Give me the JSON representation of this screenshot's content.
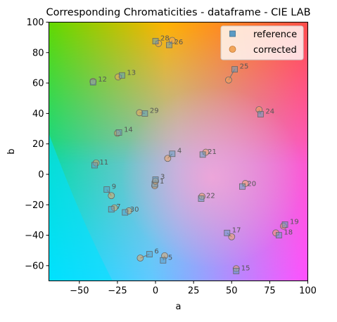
{
  "chart_data": {
    "type": "scatter",
    "title": "Corresponding Chromaticities - dataframe - CIE LAB",
    "xlabel": "a",
    "ylabel": "b",
    "xlim": [
      -70,
      100
    ],
    "ylim": [
      -70,
      100
    ],
    "xticks": [
      -50,
      -25,
      0,
      25,
      50,
      75,
      100
    ],
    "yticks": [
      -60,
      -40,
      -20,
      0,
      20,
      40,
      60,
      80,
      100
    ],
    "grid": false,
    "legend": "top-right",
    "series": [
      {
        "name": "reference",
        "marker": "square",
        "color": "#5b9bc4"
      },
      {
        "name": "corrected",
        "marker": "circle",
        "color": "#f2a65a"
      }
    ],
    "points": [
      {
        "label": "1",
        "ref": [
          -0.5,
          -6.5
        ],
        "cor": [
          -0.5,
          -7.5
        ]
      },
      {
        "label": "3",
        "ref": [
          0,
          -3.5
        ],
        "cor": [
          0,
          -4.5
        ]
      },
      {
        "label": "4",
        "ref": [
          11,
          13.5
        ],
        "cor": [
          8,
          10.5
        ]
      },
      {
        "label": "5",
        "ref": [
          5,
          -56.5
        ],
        "cor": [
          6,
          -53.5
        ]
      },
      {
        "label": "6",
        "ref": [
          -4,
          -52.5
        ],
        "cor": [
          -10,
          -55
        ]
      },
      {
        "label": "7",
        "ref": [
          -29,
          -23
        ],
        "cor": [
          -27,
          -22
        ]
      },
      {
        "label": "9",
        "ref": [
          -32,
          -10
        ],
        "cor": [
          -29,
          -14
        ]
      },
      {
        "label": "11",
        "ref": [
          -40,
          6
        ],
        "cor": [
          -39,
          7.5
        ]
      },
      {
        "label": "12",
        "ref": [
          -41,
          60.5
        ],
        "cor": [
          -41,
          61
        ]
      },
      {
        "label": "13",
        "ref": [
          -22,
          65
        ],
        "cor": [
          -24.5,
          64
        ]
      },
      {
        "label": "14",
        "ref": [
          -24,
          27.5
        ],
        "cor": [
          -25,
          27
        ]
      },
      {
        "label": "15",
        "ref": [
          53,
          -63.5
        ],
        "cor": [
          53,
          -62
        ]
      },
      {
        "label": "17",
        "ref": [
          47,
          -38.5
        ],
        "cor": [
          50,
          -41
        ]
      },
      {
        "label": "18",
        "ref": [
          81,
          -40
        ],
        "cor": [
          79,
          -38.5
        ]
      },
      {
        "label": "19",
        "ref": [
          85,
          -33
        ],
        "cor": [
          84,
          -34
        ]
      },
      {
        "label": "20",
        "ref": [
          57,
          -8
        ],
        "cor": [
          59,
          -6
        ]
      },
      {
        "label": "21",
        "ref": [
          31,
          13
        ],
        "cor": [
          33,
          14.5
        ]
      },
      {
        "label": "22",
        "ref": [
          30,
          -16
        ],
        "cor": [
          30.5,
          -14.5
        ]
      },
      {
        "label": "24",
        "ref": [
          69,
          39.5
        ],
        "cor": [
          68,
          42.5
        ]
      },
      {
        "label": "25",
        "ref": [
          52,
          69
        ],
        "cor": [
          48,
          62
        ]
      },
      {
        "label": "26",
        "ref": [
          9,
          85
        ],
        "cor": [
          11,
          88
        ]
      },
      {
        "label": "28",
        "ref": [
          0,
          87.5
        ],
        "cor": [
          2,
          86
        ]
      },
      {
        "label": "29",
        "ref": [
          -7,
          40
        ],
        "cor": [
          -10.5,
          40.5
        ]
      },
      {
        "label": "30",
        "ref": [
          -20,
          -25
        ],
        "cor": [
          -17.5,
          -24
        ]
      }
    ]
  }
}
